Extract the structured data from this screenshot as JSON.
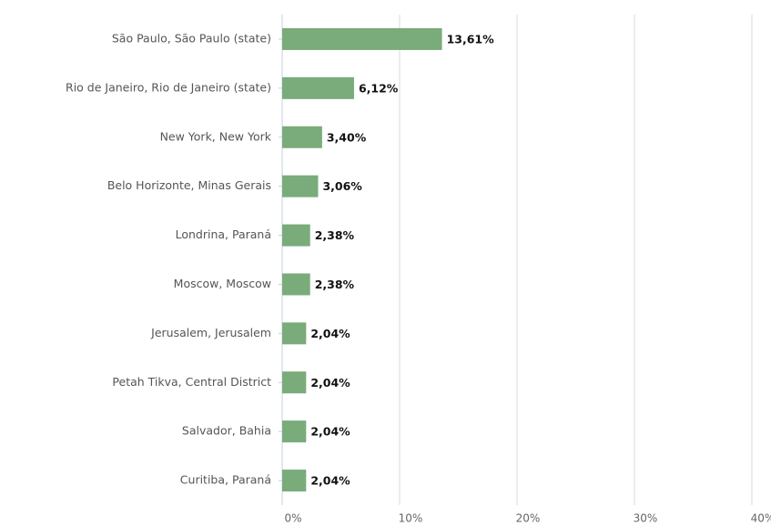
{
  "chart_data": {
    "type": "bar",
    "orientation": "horizontal",
    "categories": [
      "São Paulo, São Paulo (state)",
      "Rio de Janeiro, Rio de Janeiro (state)",
      "New York, New York",
      "Belo Horizonte, Minas Gerais",
      "Londrina, Paraná",
      "Moscow, Moscow",
      "Jerusalem, Jerusalem",
      "Petah Tikva, Central District",
      "Salvador, Bahia",
      "Curitiba, Paraná"
    ],
    "values": [
      13.61,
      6.12,
      3.4,
      3.06,
      2.38,
      2.38,
      2.04,
      2.04,
      2.04,
      2.04
    ],
    "value_labels": [
      "13,61%",
      "6,12%",
      "3,40%",
      "3,06%",
      "2,38%",
      "2,38%",
      "2,04%",
      "2,04%",
      "2,04%",
      "2,04%"
    ],
    "color": "#7aab7a",
    "xlim": [
      0,
      40
    ],
    "xticks": [
      {
        "value": 0,
        "label": "0%"
      },
      {
        "value": 10,
        "label": "10%"
      },
      {
        "value": 20,
        "label": "20%"
      },
      {
        "value": 30,
        "label": "30%"
      },
      {
        "value": 40,
        "label": "40%"
      }
    ],
    "grid": true
  }
}
